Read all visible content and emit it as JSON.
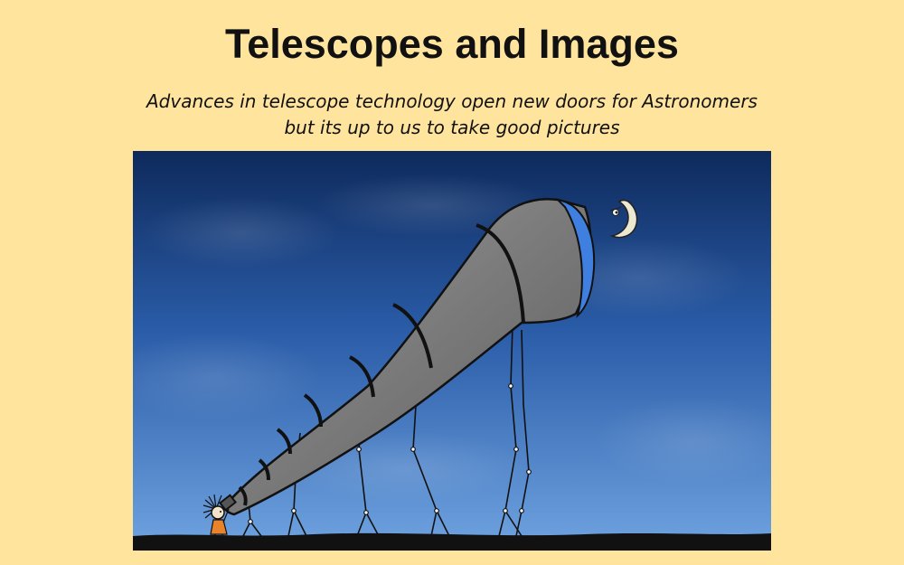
{
  "slide": {
    "title": "Telescopes and Images",
    "subtitle_lines": [
      "Advances in telescope technology open new doors for Astronomers",
      "but its up to us to take good pictures"
    ]
  },
  "illustration": {
    "description_icon": "telescope-cartoon",
    "colors": {
      "page_background": "#FFE49E",
      "sky_top": "#0E2A5C",
      "sky_bottom": "#6FA3E0",
      "telescope": "#7A7A7A",
      "lens": "#3E7FE0",
      "moon": "#EDE8D2",
      "ground": "#111111",
      "child_dress": "#E8832A"
    }
  }
}
